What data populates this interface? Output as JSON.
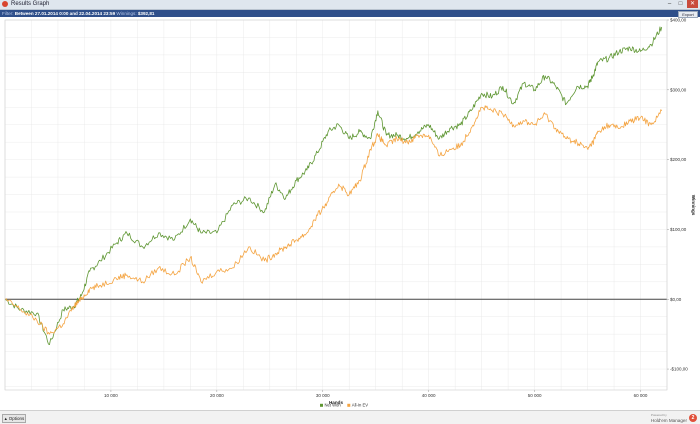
{
  "window": {
    "title": "Results Graph",
    "buttons": {
      "minimize": "–",
      "maximize": "□",
      "close": "✕"
    }
  },
  "filter_bar": {
    "label": "Filter:",
    "text": "Between 27.01.2014 0:00 and 22.04.2014 23:59",
    "winnings_label": "Winnings:",
    "winnings_value": "$392,81",
    "export_label": "Export"
  },
  "bottom_bar": {
    "options_label": "Options",
    "brand_name": "Hold'em Manager",
    "brand_sub": "Powered by",
    "logo_text": "2"
  },
  "colors": {
    "net_won": "#5e9632",
    "allin_ev": "#f4a442",
    "zero_line": "#444444",
    "grid": "#e6e6e6",
    "title_bar": "#dfe6ee",
    "filter_bar": "#2f4f8a"
  },
  "chart_data": {
    "type": "line",
    "xlabel": "Hands",
    "ylabel": "Winnings",
    "xlim": [
      0,
      62500
    ],
    "ylim": [
      -130,
      400
    ],
    "x_ticks": [
      10000,
      20000,
      30000,
      40000,
      50000,
      60000
    ],
    "x_tick_labels": [
      "10 000",
      "20 000",
      "30 000",
      "40 000",
      "50 000",
      "60 000"
    ],
    "y_ticks": [
      -100,
      0,
      100,
      200,
      300,
      400
    ],
    "y_tick_labels": [
      "-$100,00",
      "$0,00",
      "$100,00",
      "$200,00",
      "$300,00",
      "$400,00"
    ],
    "grid": true,
    "legend_position": "bottom-center",
    "series": [
      {
        "name": "Net Won",
        "color": "#5e9632",
        "x": [
          0,
          1500,
          3000,
          4200,
          5500,
          6500,
          7200,
          8000,
          9000,
          10500,
          11500,
          13000,
          14500,
          16000,
          17500,
          18500,
          20000,
          21500,
          23000,
          24500,
          25500,
          26500,
          27500,
          28500,
          29500,
          30500,
          31500,
          32500,
          33500,
          34500,
          35200,
          36000,
          37000,
          38000,
          39000,
          40000,
          41000,
          42000,
          43000,
          44000,
          45000,
          46000,
          47000,
          48000,
          49000,
          50000,
          51000,
          52000,
          53000,
          54000,
          55000,
          55500,
          56000,
          57000,
          58000,
          59000,
          60000,
          61000,
          62000
        ],
        "y": [
          0,
          -15,
          -20,
          -65,
          -15,
          -10,
          5,
          40,
          55,
          80,
          95,
          75,
          95,
          85,
          115,
          95,
          95,
          135,
          145,
          125,
          165,
          145,
          170,
          185,
          210,
          240,
          250,
          230,
          240,
          230,
          270,
          235,
          235,
          230,
          240,
          250,
          230,
          245,
          250,
          270,
          295,
          290,
          305,
          280,
          310,
          300,
          320,
          305,
          280,
          305,
          305,
          320,
          340,
          345,
          355,
          360,
          355,
          365,
          390
        ]
      },
      {
        "name": "All-In EV",
        "color": "#f4a442",
        "x": [
          0,
          1500,
          3000,
          4200,
          5500,
          6500,
          7200,
          8000,
          9000,
          10500,
          11500,
          13000,
          14500,
          16000,
          17500,
          18500,
          20000,
          21500,
          23000,
          24500,
          25500,
          26500,
          27500,
          28500,
          29500,
          30500,
          31500,
          32500,
          33500,
          34500,
          35200,
          36000,
          37000,
          38000,
          39000,
          40000,
          41000,
          42000,
          43000,
          44000,
          45000,
          46000,
          47000,
          48000,
          49000,
          50000,
          51000,
          52000,
          53000,
          54000,
          55000,
          55500,
          56000,
          57000,
          58000,
          59000,
          60000,
          61000,
          62000
        ],
        "y": [
          0,
          -15,
          -30,
          -50,
          -35,
          -10,
          0,
          15,
          20,
          30,
          35,
          25,
          45,
          35,
          60,
          25,
          40,
          45,
          75,
          55,
          65,
          75,
          85,
          95,
          120,
          140,
          165,
          150,
          170,
          215,
          235,
          220,
          230,
          225,
          235,
          235,
          205,
          215,
          220,
          245,
          275,
          270,
          265,
          250,
          255,
          250,
          265,
          245,
          230,
          225,
          215,
          225,
          240,
          250,
          245,
          255,
          260,
          250,
          270
        ]
      }
    ]
  }
}
